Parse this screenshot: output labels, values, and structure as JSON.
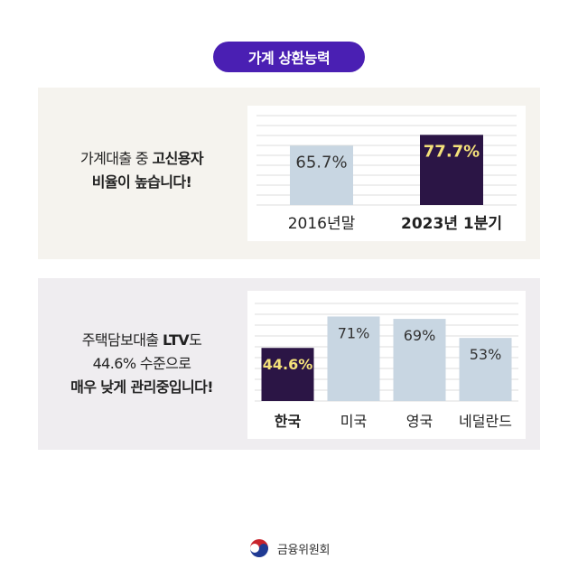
{
  "header": {
    "badge": "가계 상환능력"
  },
  "section1": {
    "caption": {
      "line1_plain": "가계대출 중 ",
      "line1_bold": "고신용자",
      "line2_bold": "비율이 높습니다!"
    }
  },
  "section2": {
    "caption": {
      "line1_plain": "주택담보대출 ",
      "line1_bold": "LTV",
      "line1_tail": "도",
      "line2_plain": "44.6% 수준으로",
      "line3_bold": "매우 낮게 관리중입니다!"
    }
  },
  "footer": {
    "org_name": "금융위원회",
    "logo": "taegeuk-emblem-icon"
  },
  "colors": {
    "accent": "#4a1fb3",
    "highlight_bar": "#2b1545",
    "normal_bar": "#c8d6e2",
    "highlight_label": "#f5e27a",
    "grid": "#dcdcdc"
  },
  "chart_data": [
    {
      "type": "bar",
      "categories": [
        "2016년말",
        "2023년 1분기"
      ],
      "values": [
        65.7,
        77.7
      ],
      "value_labels": [
        "65.7%",
        "77.7%"
      ],
      "highlight_index": 1,
      "unit": "%",
      "ylim": [
        0,
        100
      ],
      "grid": true
    },
    {
      "type": "bar",
      "categories": [
        "한국",
        "미국",
        "영국",
        "네덜란드"
      ],
      "values": [
        44.6,
        71,
        69,
        53
      ],
      "value_labels": [
        "44.6%",
        "71%",
        "69%",
        "53%"
      ],
      "highlight_index": 0,
      "unit": "%",
      "ylim": [
        0,
        85
      ],
      "grid": true
    }
  ]
}
